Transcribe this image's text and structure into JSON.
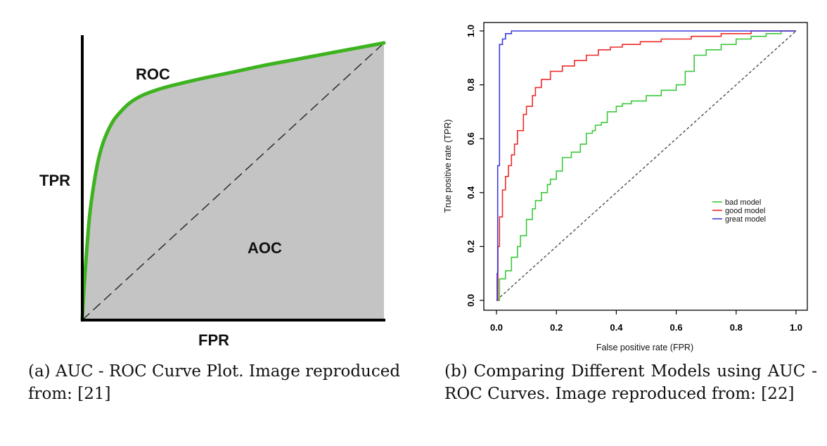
{
  "captions": {
    "a": "(a) AUC - ROC Curve Plot. Image reproduced from: [21]",
    "b": "(b) Comparing Different Models using AUC - ROC Curves. Image reproduced from: [22]"
  },
  "chart_data": [
    {
      "type": "area",
      "xlabel": "FPR",
      "ylabel": "TPR",
      "annotations": [
        "ROC",
        "AOC"
      ],
      "xlim": [
        0,
        1
      ],
      "ylim": [
        0,
        1
      ],
      "grid": false,
      "series": [
        {
          "name": "ROC",
          "color": "#3db31f",
          "x": [
            0,
            0.005,
            0.01,
            0.02,
            0.03,
            0.05,
            0.07,
            0.1,
            0.13,
            0.16,
            0.2,
            0.25,
            0.3,
            0.4,
            0.5,
            0.6,
            0.7,
            0.8,
            0.9,
            1.0
          ],
          "y": [
            0,
            0.1,
            0.18,
            0.32,
            0.42,
            0.55,
            0.63,
            0.7,
            0.74,
            0.77,
            0.795,
            0.815,
            0.83,
            0.855,
            0.877,
            0.9,
            0.92,
            0.94,
            0.96,
            0.98
          ]
        },
        {
          "name": "diagonal",
          "color": "#222222",
          "x": [
            0,
            1
          ],
          "y": [
            0,
            1
          ]
        }
      ],
      "fill_color": "#c4c4c4"
    },
    {
      "type": "line",
      "xlabel": "False positive rate (FPR)",
      "ylabel": "True positive rate (TPR)",
      "xlim": [
        0,
        1
      ],
      "ylim": [
        0,
        1
      ],
      "xticks": [
        "0.0",
        "0.2",
        "0.4",
        "0.6",
        "0.8",
        "1.0"
      ],
      "yticks": [
        "0.0",
        "0.2",
        "0.4",
        "0.6",
        "0.8",
        "1.0"
      ],
      "grid": false,
      "legend_position": "right",
      "series": [
        {
          "name": "bad model",
          "color": "#3cc83c",
          "x": [
            0,
            0.01,
            0.01,
            0.03,
            0.03,
            0.05,
            0.05,
            0.07,
            0.07,
            0.08,
            0.08,
            0.1,
            0.1,
            0.12,
            0.12,
            0.13,
            0.13,
            0.15,
            0.15,
            0.17,
            0.17,
            0.18,
            0.18,
            0.2,
            0.2,
            0.22,
            0.22,
            0.25,
            0.25,
            0.28,
            0.28,
            0.3,
            0.3,
            0.32,
            0.32,
            0.33,
            0.33,
            0.35,
            0.35,
            0.37,
            0.37,
            0.4,
            0.4,
            0.42,
            0.42,
            0.45,
            0.45,
            0.5,
            0.5,
            0.55,
            0.55,
            0.6,
            0.6,
            0.63,
            0.63,
            0.66,
            0.66,
            0.7,
            0.7,
            0.75,
            0.75,
            0.8,
            0.8,
            0.85,
            0.85,
            0.9,
            0.9,
            0.95,
            0.95,
            1.0
          ],
          "y": [
            0,
            0,
            0.08,
            0.08,
            0.11,
            0.11,
            0.16,
            0.16,
            0.2,
            0.2,
            0.24,
            0.24,
            0.3,
            0.3,
            0.34,
            0.34,
            0.37,
            0.37,
            0.4,
            0.4,
            0.43,
            0.43,
            0.45,
            0.45,
            0.48,
            0.48,
            0.53,
            0.53,
            0.55,
            0.55,
            0.58,
            0.58,
            0.62,
            0.62,
            0.63,
            0.63,
            0.65,
            0.65,
            0.66,
            0.66,
            0.7,
            0.7,
            0.72,
            0.72,
            0.73,
            0.73,
            0.74,
            0.74,
            0.76,
            0.76,
            0.78,
            0.78,
            0.8,
            0.8,
            0.85,
            0.85,
            0.91,
            0.91,
            0.93,
            0.93,
            0.95,
            0.95,
            0.97,
            0.97,
            0.98,
            0.98,
            0.99,
            0.99,
            1.0,
            1.0
          ]
        },
        {
          "name": "good model",
          "color": "#ee2a2a",
          "x": [
            0,
            0.005,
            0.005,
            0.01,
            0.01,
            0.02,
            0.02,
            0.03,
            0.03,
            0.04,
            0.04,
            0.05,
            0.05,
            0.06,
            0.06,
            0.07,
            0.07,
            0.09,
            0.09,
            0.1,
            0.1,
            0.12,
            0.12,
            0.13,
            0.13,
            0.15,
            0.15,
            0.18,
            0.18,
            0.22,
            0.22,
            0.26,
            0.26,
            0.3,
            0.3,
            0.34,
            0.34,
            0.38,
            0.38,
            0.42,
            0.42,
            0.48,
            0.48,
            0.55,
            0.55,
            0.65,
            0.65,
            0.75,
            0.75,
            0.85,
            0.85,
            1.0
          ],
          "y": [
            0,
            0,
            0.2,
            0.2,
            0.31,
            0.31,
            0.41,
            0.41,
            0.46,
            0.46,
            0.5,
            0.5,
            0.54,
            0.54,
            0.58,
            0.58,
            0.63,
            0.63,
            0.69,
            0.69,
            0.72,
            0.72,
            0.76,
            0.76,
            0.79,
            0.79,
            0.82,
            0.82,
            0.85,
            0.85,
            0.87,
            0.87,
            0.89,
            0.89,
            0.91,
            0.91,
            0.93,
            0.93,
            0.94,
            0.94,
            0.95,
            0.95,
            0.96,
            0.96,
            0.97,
            0.97,
            0.98,
            0.98,
            0.99,
            0.99,
            1.0,
            1.0
          ]
        },
        {
          "name": "great model",
          "color": "#3b3bdd",
          "x": [
            0,
            0.002,
            0.002,
            0.004,
            0.004,
            0.01,
            0.01,
            0.02,
            0.02,
            0.03,
            0.03,
            0.05,
            0.05,
            1.0
          ],
          "y": [
            0,
            0,
            0.1,
            0.1,
            0.5,
            0.5,
            0.95,
            0.95,
            0.97,
            0.97,
            0.99,
            0.99,
            1.0,
            1.0
          ]
        },
        {
          "name": "diagonal",
          "color": "#444444",
          "x": [
            0,
            1
          ],
          "y": [
            0,
            1
          ]
        }
      ]
    }
  ]
}
